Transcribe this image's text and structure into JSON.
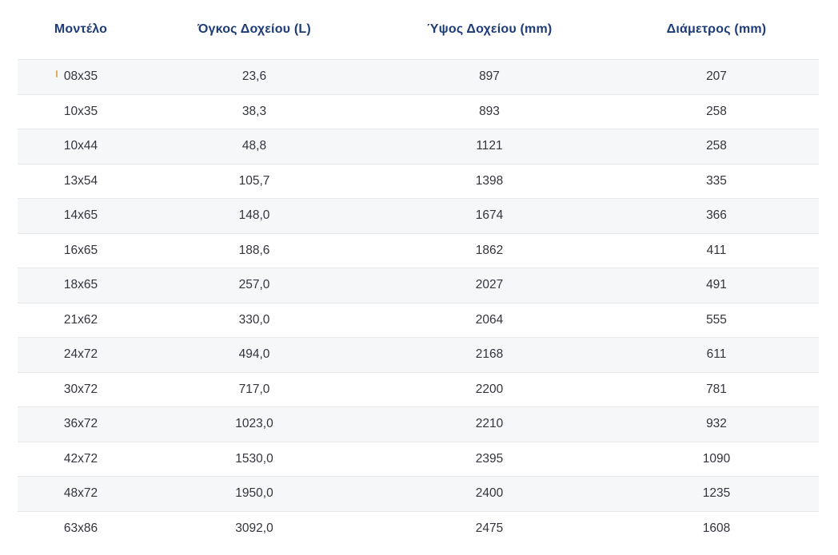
{
  "colors": {
    "header_text": "#1d3c78",
    "body_text": "#33343d",
    "row_stripe": "#f6f7f9",
    "row_border": "#e7e8ea",
    "background": "#ffffff",
    "caret_artifact": "#dba144"
  },
  "table": {
    "columns": [
      "Μοντέλο",
      "Όγκος Δοχείου (L)",
      "Ύψος Δοχείου (mm)",
      "Διάμετρος (mm)"
    ],
    "rows": [
      [
        "08x35",
        "23,6",
        "897",
        "207"
      ],
      [
        "10x35",
        "38,3",
        "893",
        "258"
      ],
      [
        "10x44",
        "48,8",
        "1121",
        "258"
      ],
      [
        "13x54",
        "105,7",
        "1398",
        "335"
      ],
      [
        "14x65",
        "148,0",
        "1674",
        "366"
      ],
      [
        "16x65",
        "188,6",
        "1862",
        "411"
      ],
      [
        "18x65",
        "257,0",
        "2027",
        "491"
      ],
      [
        "21x62",
        "330,0",
        "2064",
        "555"
      ],
      [
        "24x72",
        "494,0",
        "2168",
        "611"
      ],
      [
        "30x72",
        "717,0",
        "2200",
        "781"
      ],
      [
        "36x72",
        "1023,0",
        "2210",
        "932"
      ],
      [
        "42x72",
        "1530,0",
        "2395",
        "1090"
      ],
      [
        "48x72",
        "1950,0",
        "2400",
        "1235"
      ],
      [
        "63x86",
        "3092,0",
        "2475",
        "1608"
      ]
    ]
  },
  "chart_data": {
    "type": "table",
    "title": "",
    "columns": [
      "Μοντέλο",
      "Όγκος Δοχείου (L)",
      "Ύψος Δοχείου (mm)",
      "Διάμετρος (mm)"
    ],
    "rows": [
      [
        "08x35",
        23.6,
        897,
        207
      ],
      [
        "10x35",
        38.3,
        893,
        258
      ],
      [
        "10x44",
        48.8,
        1121,
        258
      ],
      [
        "13x54",
        105.7,
        1398,
        335
      ],
      [
        "14x65",
        148.0,
        1674,
        366
      ],
      [
        "16x65",
        188.6,
        1862,
        411
      ],
      [
        "18x65",
        257.0,
        2027,
        491
      ],
      [
        "21x62",
        330.0,
        2064,
        555
      ],
      [
        "24x72",
        494.0,
        2168,
        611
      ],
      [
        "30x72",
        717.0,
        2200,
        781
      ],
      [
        "36x72",
        1023.0,
        2210,
        932
      ],
      [
        "42x72",
        1530.0,
        2395,
        1090
      ],
      [
        "48x72",
        1950.0,
        2400,
        1235
      ],
      [
        "63x86",
        3092.0,
        2475,
        1608
      ]
    ]
  }
}
